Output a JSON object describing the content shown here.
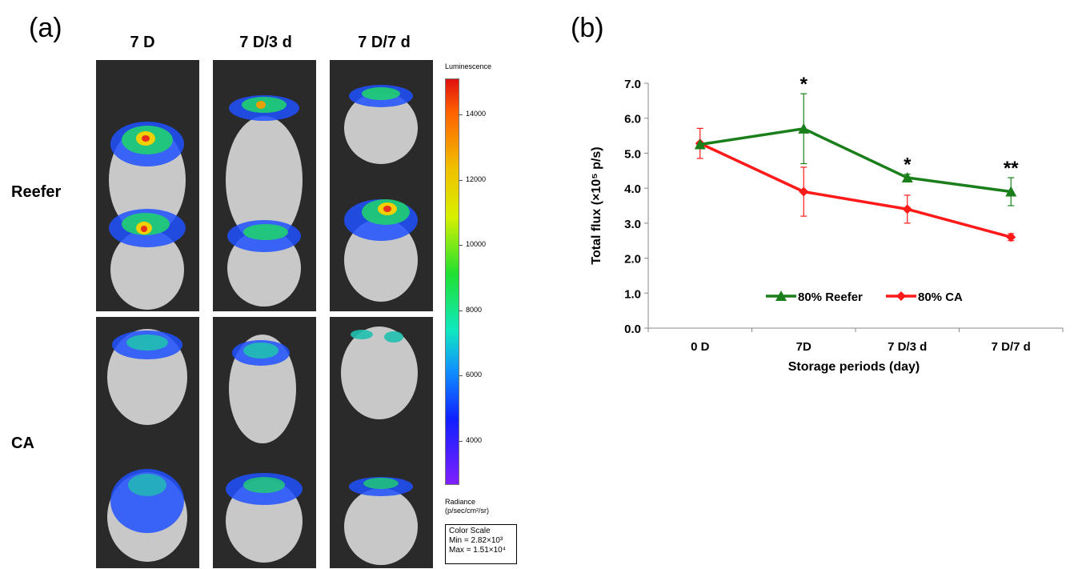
{
  "panel_a": {
    "label": "(a)",
    "columns": [
      "7 D",
      "7 D/3 d",
      "7 D/7 d"
    ],
    "rows": [
      "Reefer",
      "CA"
    ],
    "colorbar": {
      "title": "Luminescence",
      "ticks": [
        "14000",
        "12000",
        "10000",
        "8000",
        "6000",
        "4000"
      ],
      "radiance_line1": "Radiance",
      "radiance_line2": "(p/sec/cm²/sr)",
      "box_title": "Color Scale",
      "box_min": "Min = 2.82×10³",
      "box_max": "Max = 1.51×10⁴"
    },
    "colors": {
      "high": "#e8201a",
      "mid": "#f0e000",
      "low_mid": "#30e060",
      "low": "#1040ff",
      "min": "#8a20ff"
    }
  },
  "panel_b": {
    "label": "(b)"
  },
  "chart_data": {
    "type": "line",
    "categories": [
      "0 D",
      "7D",
      "7 D/3 d",
      "7 D/7 d"
    ],
    "xlabel": "Storage periods (day)",
    "ylabel": "Total flux (×10⁵ p/s)",
    "ylim": [
      0,
      7
    ],
    "yticks": [
      "0.0",
      "1.0",
      "2.0",
      "3.0",
      "4.0",
      "5.0",
      "6.0",
      "7.0"
    ],
    "legend_position": "bottom-center",
    "series": [
      {
        "name": "80% Reefer",
        "color": "#1a7f1a",
        "marker": "triangle",
        "values": [
          5.25,
          5.7,
          4.3,
          3.9
        ],
        "errors": [
          0.0,
          1.0,
          0.1,
          0.4
        ]
      },
      {
        "name": "80% CA",
        "color": "#ff1a1a",
        "marker": "diamond",
        "values": [
          5.28,
          3.9,
          3.4,
          2.6
        ],
        "errors": [
          0.43,
          0.7,
          0.4,
          0.1
        ]
      }
    ],
    "annotations": [
      "",
      "*",
      "*",
      "**"
    ]
  }
}
